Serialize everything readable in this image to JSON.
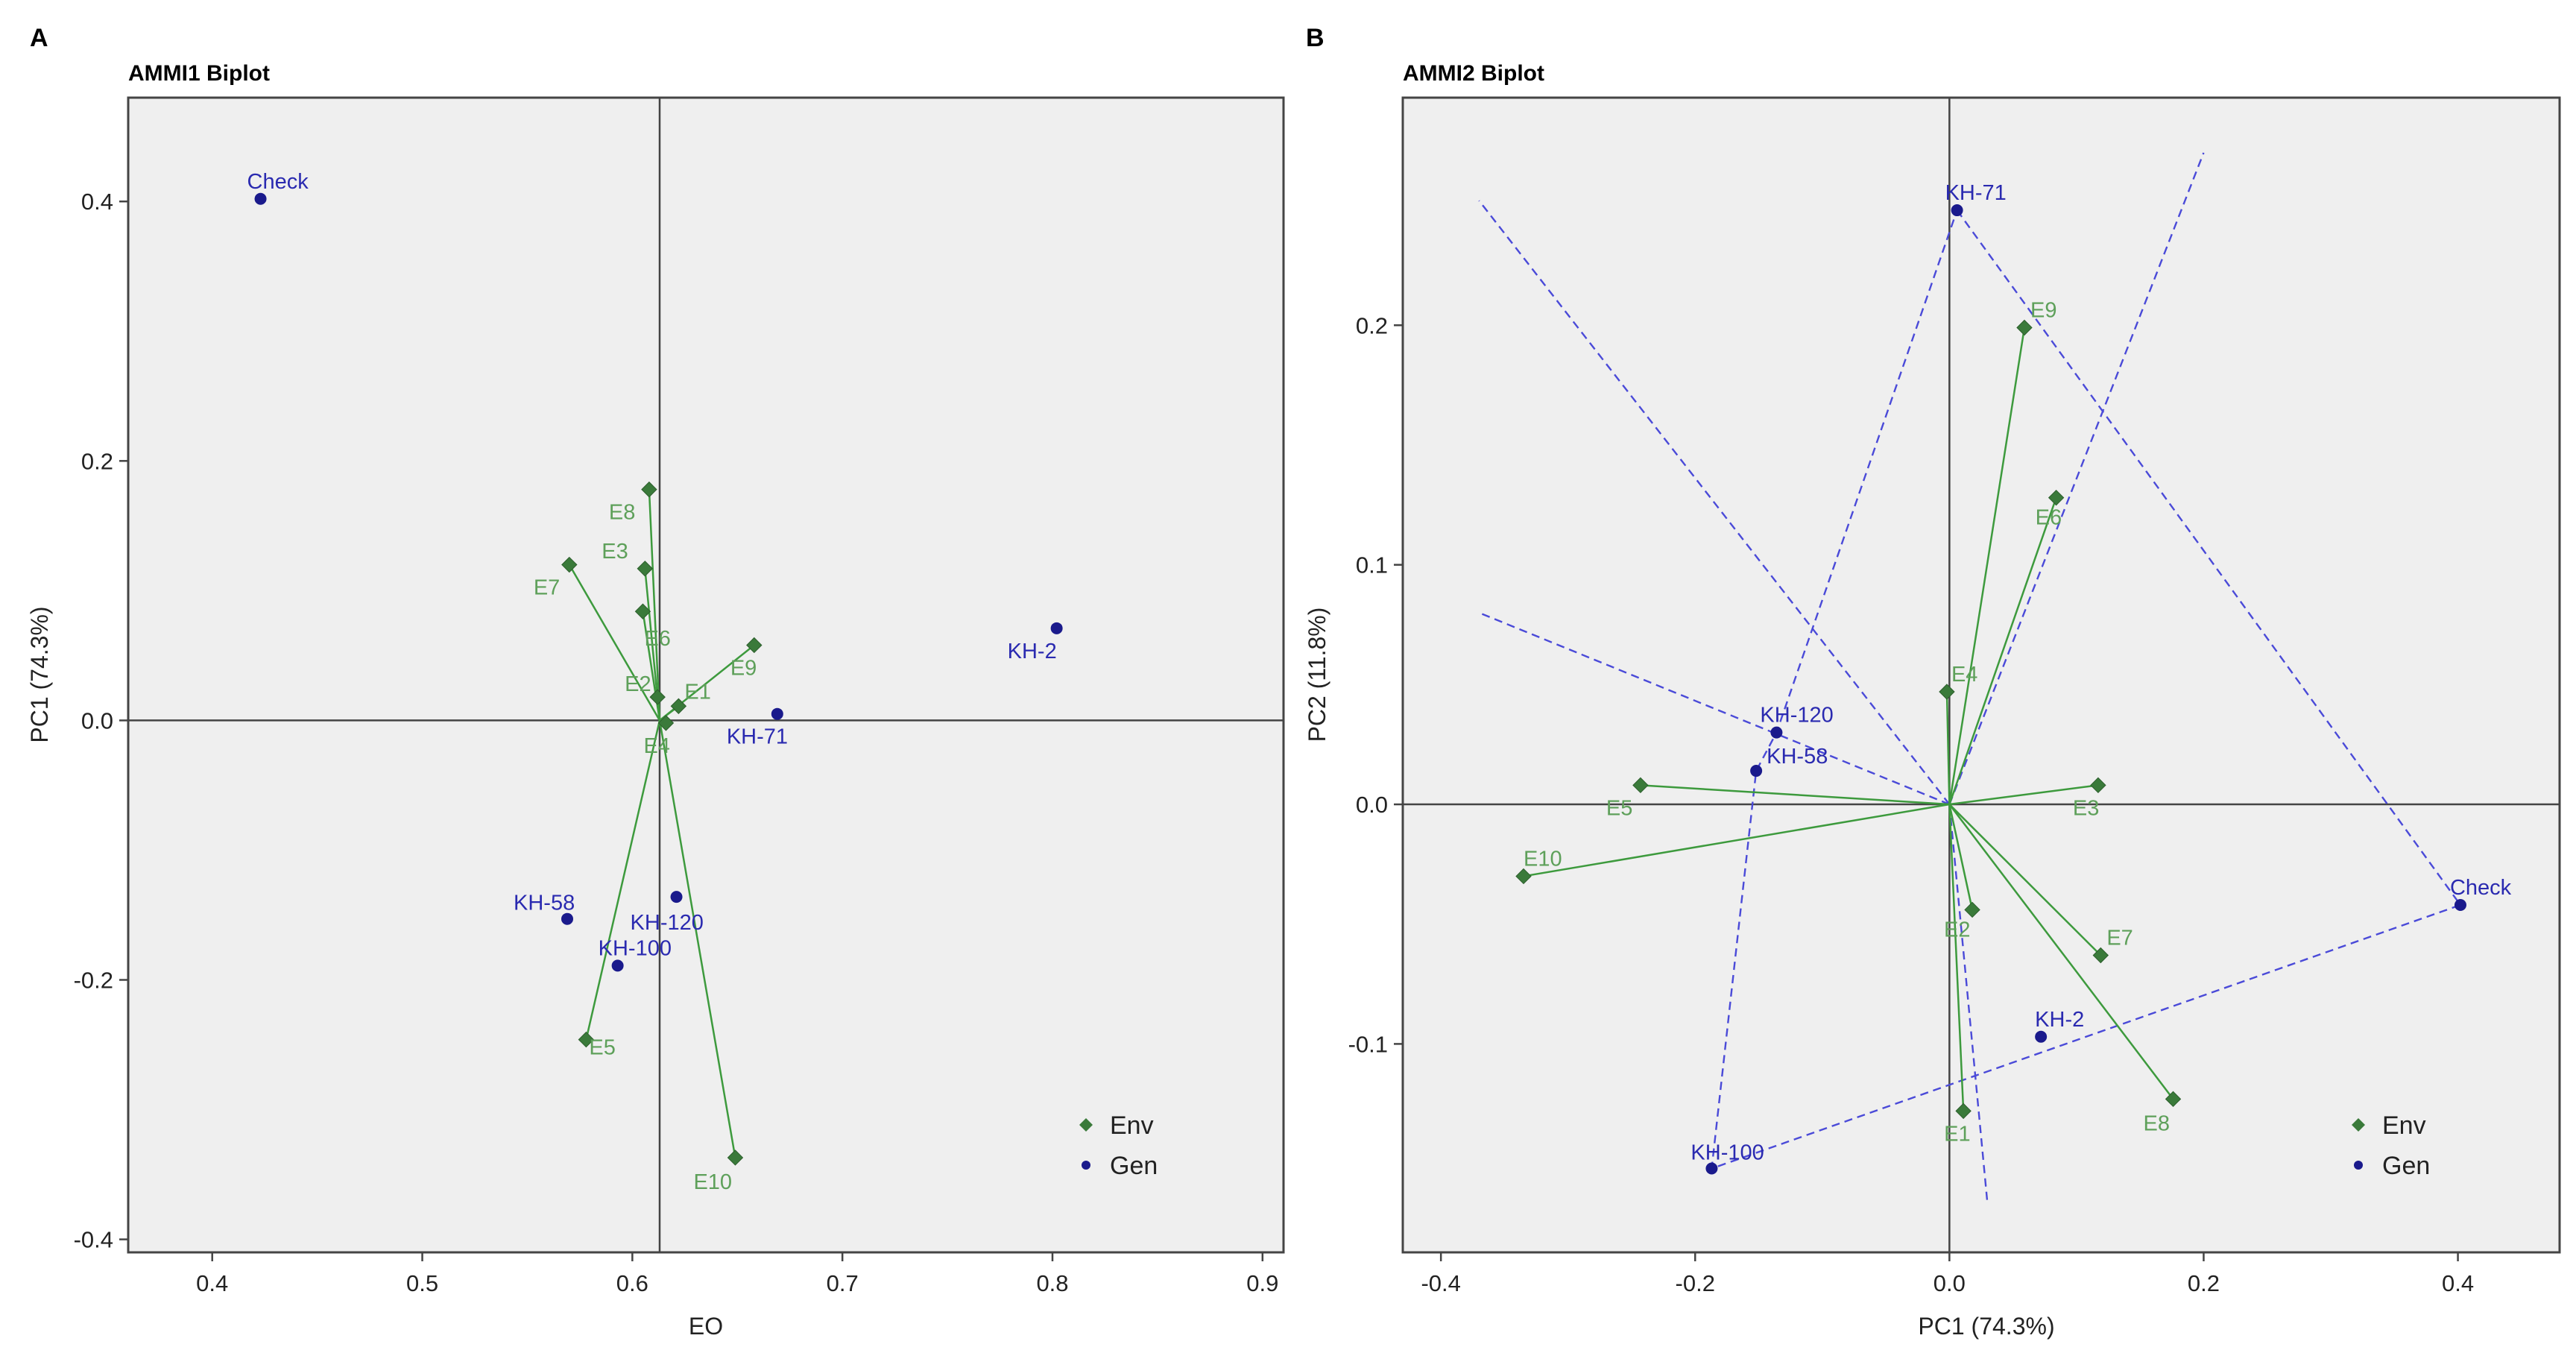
{
  "figure": {
    "colors": {
      "panel_bg": "#efefef",
      "frame": "#444444",
      "env_marker": "#3a7a3a",
      "env_line": "#3d9a3d",
      "env_text": "#5ea05a",
      "gen_marker": "#1a1a8c",
      "gen_text": "#2a2ab0",
      "polygon": "#4a4ad8"
    }
  },
  "chart_data": [
    {
      "panel_letter": "A",
      "title": "AMMI1 Biplot",
      "type": "scatter",
      "xlabel": "EO",
      "ylabel": "PC1 (74.3%)",
      "xlim": [
        0.36,
        0.91
      ],
      "ylim": [
        -0.41,
        0.48
      ],
      "xticks": [
        0.4,
        0.5,
        0.6,
        0.7,
        0.8,
        0.9
      ],
      "xtick_labels": [
        "0.4",
        "0.5",
        "0.6",
        "0.7",
        "0.8",
        "0.9"
      ],
      "yticks": [
        -0.4,
        -0.2,
        0.0,
        0.2,
        0.4
      ],
      "ytick_labels": [
        "-0.4",
        "-0.2",
        "0.0",
        "0.2",
        "0.4"
      ],
      "ref_lines": {
        "x": 0.613,
        "y": 0.0
      },
      "vector_origin": [
        0.613,
        0.0
      ],
      "legend": {
        "position": "bottom-right",
        "entries": [
          "Env",
          "Gen"
        ]
      },
      "environments": [
        {
          "name": "E1",
          "x": 0.622,
          "y": 0.011
        },
        {
          "name": "E2",
          "x": 0.612,
          "y": 0.018
        },
        {
          "name": "E3",
          "x": 0.606,
          "y": 0.117
        },
        {
          "name": "E4",
          "x": 0.616,
          "y": -0.002
        },
        {
          "name": "E5",
          "x": 0.578,
          "y": -0.246
        },
        {
          "name": "E6",
          "x": 0.605,
          "y": 0.084
        },
        {
          "name": "E7",
          "x": 0.57,
          "y": 0.12
        },
        {
          "name": "E8",
          "x": 0.608,
          "y": 0.178
        },
        {
          "name": "E9",
          "x": 0.658,
          "y": 0.058
        },
        {
          "name": "E10",
          "x": 0.649,
          "y": -0.337
        }
      ],
      "genotypes": [
        {
          "name": "Check",
          "x": 0.423,
          "y": 0.402
        },
        {
          "name": "KH-2",
          "x": 0.802,
          "y": 0.071
        },
        {
          "name": "KH-71",
          "x": 0.669,
          "y": 0.005
        },
        {
          "name": "KH-58",
          "x": 0.569,
          "y": -0.153
        },
        {
          "name": "KH-120",
          "x": 0.621,
          "y": -0.136
        },
        {
          "name": "KH-100",
          "x": 0.593,
          "y": -0.189
        }
      ]
    },
    {
      "panel_letter": "B",
      "title": "AMMI2 Biplot",
      "type": "scatter",
      "xlabel": "PC1 (74.3%)",
      "ylabel": "PC2 (11.8%)",
      "xlim": [
        -0.43,
        0.48
      ],
      "ylim": [
        -0.187,
        0.295
      ],
      "xticks": [
        -0.4,
        -0.2,
        0.0,
        0.2,
        0.4
      ],
      "xtick_labels": [
        "-0.4",
        "-0.2",
        "0.0",
        "0.2",
        "0.4"
      ],
      "yticks": [
        -0.1,
        0.0,
        0.1,
        0.2
      ],
      "ytick_labels": [
        "-0.1",
        "0.0",
        "0.1",
        "0.2"
      ],
      "ref_lines": {
        "x": 0.0,
        "y": 0.0
      },
      "vector_origin": [
        0.0,
        0.0
      ],
      "legend": {
        "position": "bottom-right",
        "entries": [
          "Env",
          "Gen"
        ]
      },
      "environments": [
        {
          "name": "E1",
          "x": 0.011,
          "y": -0.128
        },
        {
          "name": "E2",
          "x": 0.018,
          "y": -0.044
        },
        {
          "name": "E3",
          "x": 0.117,
          "y": 0.008
        },
        {
          "name": "E4",
          "x": -0.002,
          "y": 0.047
        },
        {
          "name": "E5",
          "x": -0.243,
          "y": 0.008
        },
        {
          "name": "E6",
          "x": 0.084,
          "y": 0.128
        },
        {
          "name": "E7",
          "x": 0.119,
          "y": -0.063
        },
        {
          "name": "E8",
          "x": 0.176,
          "y": -0.123
        },
        {
          "name": "E9",
          "x": 0.059,
          "y": 0.199
        },
        {
          "name": "E10",
          "x": -0.335,
          "y": -0.03
        }
      ],
      "genotypes": [
        {
          "name": "KH-71",
          "x": 0.006,
          "y": 0.248
        },
        {
          "name": "KH-120",
          "x": -0.136,
          "y": 0.03
        },
        {
          "name": "KH-58",
          "x": -0.152,
          "y": 0.014
        },
        {
          "name": "Check",
          "x": 0.402,
          "y": -0.042
        },
        {
          "name": "KH-2",
          "x": 0.072,
          "y": -0.097
        },
        {
          "name": "KH-100",
          "x": -0.187,
          "y": -0.152
        }
      ],
      "polygon_order": [
        "KH-71",
        "Check",
        "KH-100",
        "KH-58",
        "KH-120"
      ],
      "sector_rays": [
        {
          "x": -0.37,
          "y": 0.252
        },
        {
          "x": 0.2,
          "y": 0.272
        },
        {
          "x": -0.37,
          "y": 0.08
        },
        {
          "x": 0.03,
          "y": -0.167
        }
      ]
    }
  ]
}
